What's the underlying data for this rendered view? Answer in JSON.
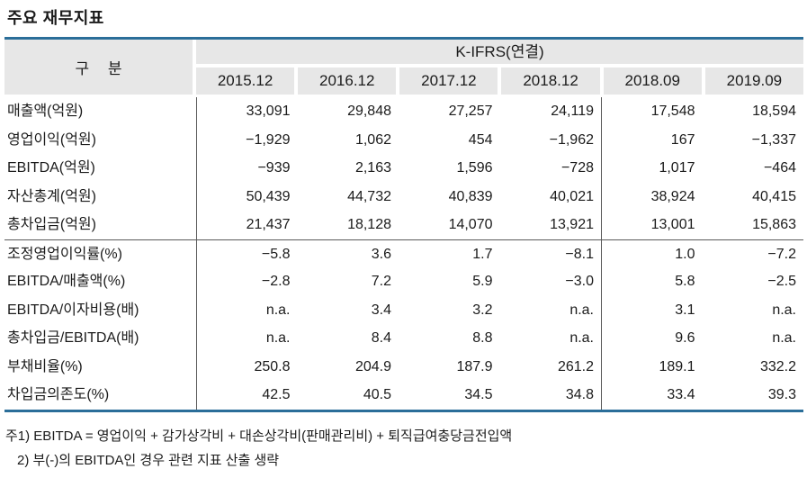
{
  "page": {
    "title": "주요 재무지표"
  },
  "table": {
    "row_header": "구 분",
    "group_header": "K-IFRS(연결)",
    "periods": [
      "2015.12",
      "2016.12",
      "2017.12",
      "2018.12",
      "2018.09",
      "2019.09"
    ],
    "rows": [
      {
        "label": "매출액(억원)",
        "values": [
          "33,091",
          "29,848",
          "27,257",
          "24,119",
          "17,548",
          "18,594"
        ]
      },
      {
        "label": "영업이익(억원)",
        "values": [
          "−1,929",
          "1,062",
          "454",
          "−1,962",
          "167",
          "−1,337"
        ]
      },
      {
        "label": "EBITDA(억원)",
        "values": [
          "−939",
          "2,163",
          "1,596",
          "−728",
          "1,017",
          "−464"
        ]
      },
      {
        "label": "자산총계(억원)",
        "values": [
          "50,439",
          "44,732",
          "40,839",
          "40,021",
          "38,924",
          "40,415"
        ]
      },
      {
        "label": "총차입금(억원)",
        "values": [
          "21,437",
          "18,128",
          "14,070",
          "13,921",
          "13,001",
          "15,863"
        ]
      },
      {
        "label": "조정영업이익률(%)",
        "values": [
          "−5.8",
          "3.6",
          "1.7",
          "−8.1",
          "1.0",
          "−7.2"
        ],
        "section_start": true
      },
      {
        "label": "EBITDA/매출액(%)",
        "values": [
          "−2.8",
          "7.2",
          "5.9",
          "−3.0",
          "5.8",
          "−2.5"
        ]
      },
      {
        "label": "EBITDA/이자비용(배)",
        "values": [
          "n.a.",
          "3.4",
          "3.2",
          "n.a.",
          "3.1",
          "n.a."
        ]
      },
      {
        "label": "총차입금/EBITDA(배)",
        "values": [
          "n.a.",
          "8.4",
          "8.8",
          "n.a.",
          "9.6",
          "n.a."
        ]
      },
      {
        "label": "부채비율(%)",
        "values": [
          "250.8",
          "204.9",
          "187.9",
          "261.2",
          "189.1",
          "332.2"
        ]
      },
      {
        "label": "차입금의존도(%)",
        "values": [
          "42.5",
          "40.5",
          "34.5",
          "34.8",
          "33.4",
          "39.3"
        ]
      }
    ]
  },
  "notes": [
    "주1) EBITDA = 영업이익 + 감가상각비 + 대손상각비(판매관리비) + 퇴직급여충당금전입액",
    "2) 부(-)의 EBITDA인 경우 관련 지표 산출 생략"
  ],
  "colors": {
    "accent_border": "#2b6e99",
    "header_bg": "#e7e7e7",
    "divider": "#5a5a5a"
  }
}
